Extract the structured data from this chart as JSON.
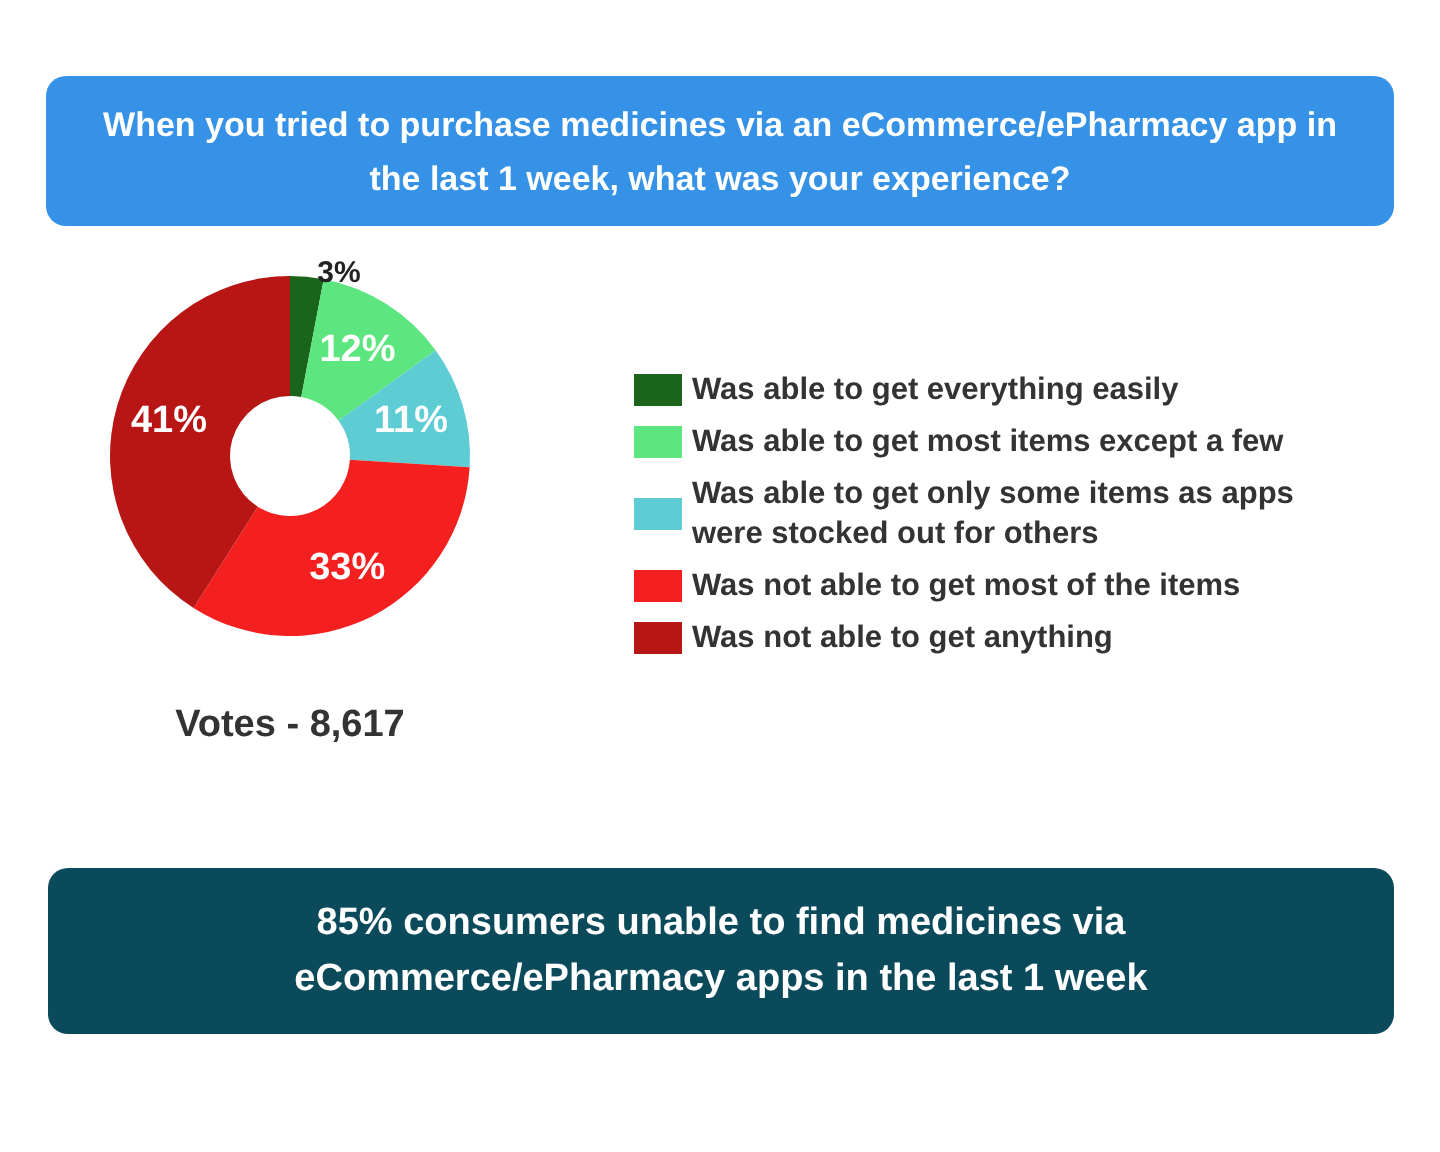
{
  "chart_data": {
    "type": "donut",
    "title": "When you tried to purchase medicines via an eCommerce/ePharmacy app in the last 1 week, what was your experience?",
    "categories": [
      "Was able to get everything easily",
      "Was able to get most items except a few",
      "Was able to get only some items as apps were stocked out for others",
      "Was not able to get most of the items",
      "Was not able to get anything"
    ],
    "values": [
      3,
      12,
      11,
      33,
      41
    ],
    "colors": [
      "#1b641b",
      "#5de67f",
      "#5dcdd3",
      "#f4201f",
      "#b81515"
    ],
    "value_labels": [
      "3%",
      "12%",
      "11%",
      "33%",
      "41%"
    ],
    "legend": "right",
    "annotations": [
      "Votes - 8,617",
      "85% consumers unable to find medicines via eCommerce/ePharmacy apps in the last 1 week"
    ]
  }
}
